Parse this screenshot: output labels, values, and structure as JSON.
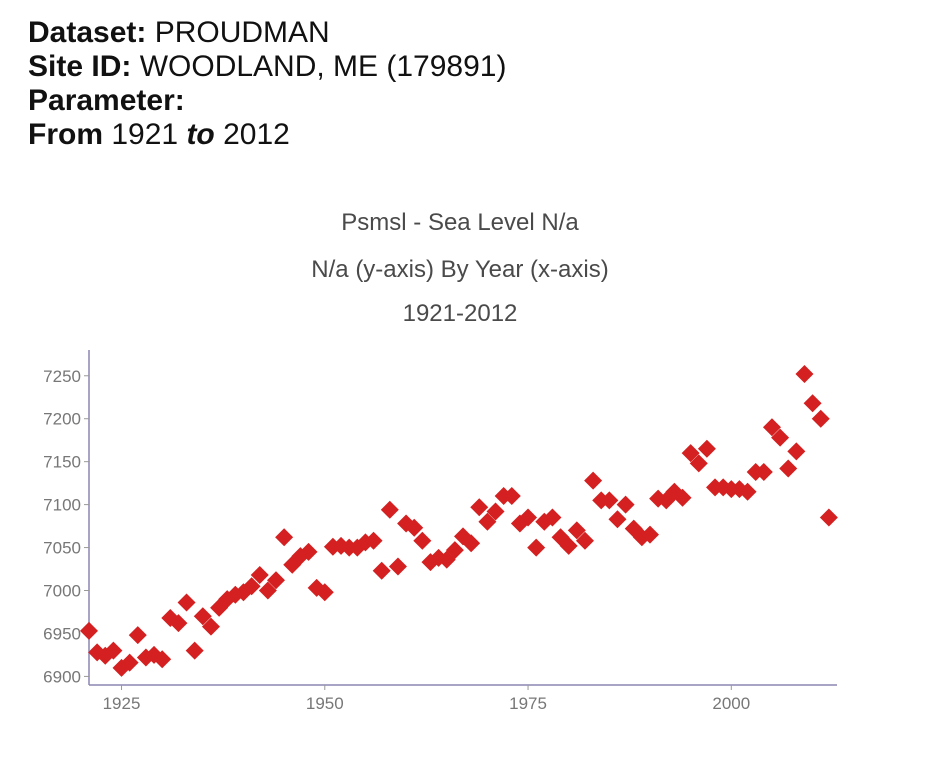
{
  "header": {
    "dataset_label": "Dataset:",
    "dataset_value": "PROUDMAN",
    "site_label": "Site ID:",
    "site_value": "WOODLAND, ME (179891)",
    "parameter_label": "Parameter:",
    "parameter_value": "",
    "from_label": "From",
    "from_value": "1921",
    "to_label": "to",
    "to_value": "2012"
  },
  "chart_data": {
    "type": "scatter",
    "title": "Psmsl - Sea Level N/a",
    "subtitle": "N/a (y-axis) By Year (x-axis)",
    "subtitle2": "1921-2012",
    "xlabel": "",
    "ylabel": "",
    "xlim": [
      1921,
      2013
    ],
    "ylim": [
      6890,
      7280
    ],
    "xticks": [
      1925,
      1950,
      1975,
      2000
    ],
    "yticks": [
      6900,
      6950,
      7000,
      7050,
      7100,
      7150,
      7200,
      7250
    ],
    "grid": false,
    "marker": "diamond",
    "color": "#d42020",
    "axis_color": "#8a86b3",
    "x": [
      1921,
      1922,
      1923,
      1924,
      1925,
      1926,
      1927,
      1928,
      1929,
      1930,
      1931,
      1932,
      1933,
      1934,
      1935,
      1936,
      1937,
      1938,
      1939,
      1940,
      1941,
      1942,
      1943,
      1944,
      1945,
      1946,
      1947,
      1948,
      1949,
      1950,
      1951,
      1952,
      1953,
      1954,
      1955,
      1956,
      1957,
      1958,
      1959,
      1960,
      1961,
      1962,
      1963,
      1964,
      1965,
      1966,
      1967,
      1968,
      1969,
      1970,
      1971,
      1972,
      1973,
      1974,
      1975,
      1976,
      1977,
      1978,
      1979,
      1980,
      1981,
      1982,
      1983,
      1984,
      1985,
      1986,
      1987,
      1988,
      1989,
      1990,
      1991,
      1992,
      1993,
      1994,
      1995,
      1996,
      1997,
      1998,
      1999,
      2000,
      2001,
      2002,
      2003,
      2004,
      2005,
      2006,
      2007,
      2008,
      2009,
      2010,
      2011,
      2012
    ],
    "y": [
      6953,
      6928,
      6924,
      6930,
      6910,
      6916,
      6948,
      6922,
      6925,
      6920,
      6968,
      6962,
      6986,
      6930,
      6970,
      6958,
      6980,
      6990,
      6995,
      6998,
      7005,
      7018,
      7000,
      7012,
      7062,
      7030,
      7040,
      7045,
      7003,
      6998,
      7051,
      7052,
      7050,
      7050,
      7056,
      7058,
      7023,
      7094,
      7028,
      7078,
      7073,
      7058,
      7033,
      7038,
      7036,
      7047,
      7063,
      7055,
      7097,
      7080,
      7092,
      7110,
      7110,
      7078,
      7085,
      7050,
      7080,
      7085,
      7062,
      7052,
      7070,
      7058,
      7128,
      7105,
      7105,
      7083,
      7100,
      7072,
      7062,
      7065,
      7107,
      7105,
      7115,
      7108,
      7160,
      7148,
      7165,
      7120,
      7120,
      7118,
      7118,
      7115,
      7138,
      7138,
      7190,
      7178,
      7142,
      7162,
      7252,
      7218,
      7200,
      7085
    ]
  }
}
